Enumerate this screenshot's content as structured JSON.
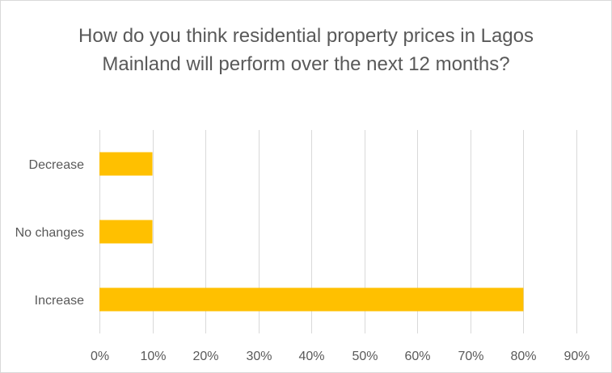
{
  "chart_data": {
    "type": "bar",
    "orientation": "horizontal",
    "title": "How do you think residential property prices in Lagos Mainland will perform over the next 12 months?",
    "categories": [
      "Decrease",
      "No changes",
      "Increase"
    ],
    "values": [
      10,
      10,
      80
    ],
    "xlim": [
      0,
      90
    ],
    "xticks": [
      "0%",
      "10%",
      "20%",
      "30%",
      "40%",
      "50%",
      "60%",
      "70%",
      "80%",
      "90%"
    ],
    "bar_color": "#FFC000",
    "grid": true,
    "legend": "none"
  }
}
